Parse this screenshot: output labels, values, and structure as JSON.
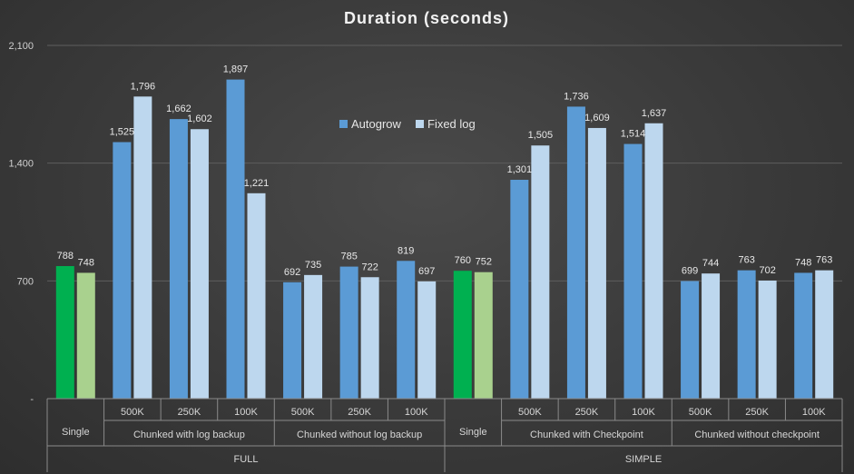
{
  "chart_data": {
    "type": "bar",
    "title": "Duration (seconds)",
    "ylim": [
      0,
      2100
    ],
    "yticks": [
      0,
      700,
      1400,
      2100
    ],
    "ytick_labels": [
      "-",
      "700",
      "1,400",
      "2,100"
    ],
    "series": [
      {
        "name": "Autogrow",
        "color": "#5b9bd5",
        "values": [
          788,
          1525,
          1662,
          1897,
          692,
          785,
          819,
          760,
          1301,
          1736,
          1514,
          699,
          763,
          748
        ]
      },
      {
        "name": "Fixed log",
        "color": "#bdd7ee",
        "values": [
          748,
          1796,
          1602,
          1221,
          735,
          722,
          697,
          752,
          1505,
          1609,
          1637,
          744,
          702,
          763
        ]
      }
    ],
    "value_labels": [
      [
        "788",
        "1,525",
        "1,662",
        "1,897",
        "692",
        "785",
        "819",
        "760",
        "1,301",
        "1,736",
        "1,514",
        "699",
        "763",
        "748"
      ],
      [
        "748",
        "1,796",
        "1,602",
        "1,221",
        "735",
        "722",
        "697",
        "752",
        "1,505",
        "1,609",
        "1,637",
        "744",
        "702",
        "763"
      ]
    ],
    "highlight_colors": {
      "autogrow_single": "#00b050",
      "fixed_single": "#a9d18e"
    },
    "highlight_indices": [
      0,
      7
    ],
    "categories_level1": [
      "",
      "500K",
      "250K",
      "100K",
      "500K",
      "250K",
      "100K",
      "",
      "500K",
      "250K",
      "100K",
      "500K",
      "250K",
      "100K"
    ],
    "categories_level2": [
      {
        "label": "Single",
        "span": 1
      },
      {
        "label": "Chunked with log backup",
        "span": 3
      },
      {
        "label": "Chunked without log backup",
        "span": 3
      },
      {
        "label": "Single",
        "span": 1
      },
      {
        "label": "Chunked with Checkpoint",
        "span": 3
      },
      {
        "label": "Chunked without checkpoint",
        "span": 3
      }
    ],
    "categories_level3": [
      {
        "label": "FULL",
        "span": 7
      },
      {
        "label": "SIMPLE",
        "span": 7
      }
    ],
    "legend_position": "top-center"
  }
}
